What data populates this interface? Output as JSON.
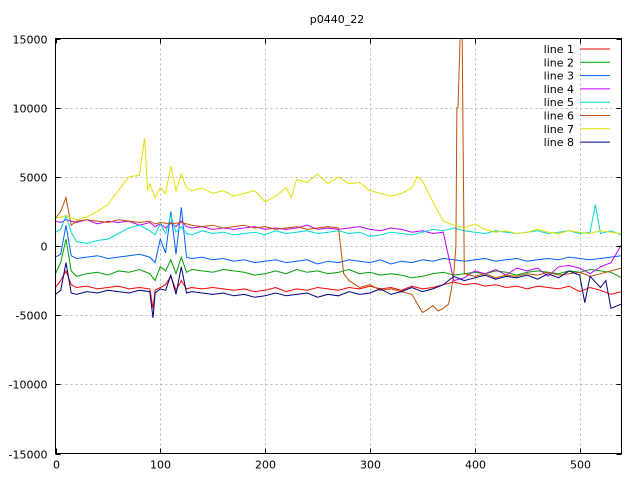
{
  "chart_data": {
    "type": "line",
    "title": "p0440_22",
    "xlabel": "",
    "ylabel": "",
    "xlim": [
      0,
      540
    ],
    "ylim": [
      -15000,
      15000
    ],
    "xticks": [
      0,
      100,
      200,
      300,
      400,
      500
    ],
    "yticks": [
      -15000,
      -10000,
      -5000,
      0,
      5000,
      10000,
      15000
    ],
    "grid": true,
    "legend_position": "top-right",
    "series": [
      {
        "name": "line 1",
        "color": "#ff0000",
        "x": [
          0,
          5,
          10,
          15,
          20,
          30,
          40,
          50,
          60,
          70,
          80,
          90,
          93,
          95,
          100,
          105,
          110,
          115,
          120,
          125,
          130,
          140,
          150,
          160,
          170,
          180,
          190,
          200,
          210,
          220,
          230,
          240,
          250,
          260,
          270,
          280,
          290,
          300,
          310,
          320,
          330,
          340,
          350,
          360,
          370,
          380,
          390,
          400,
          410,
          420,
          430,
          440,
          450,
          460,
          470,
          480,
          490,
          500,
          510,
          520,
          530,
          540
        ],
        "y": [
          -3000,
          -2500,
          -1800,
          -2800,
          -3000,
          -2900,
          -3100,
          -3000,
          -2900,
          -3100,
          -3000,
          -3100,
          -4500,
          -3200,
          -3000,
          -2800,
          -2200,
          -3200,
          -2500,
          -3100,
          -3000,
          -3100,
          -3000,
          -3100,
          -3200,
          -3100,
          -3300,
          -3200,
          -3000,
          -3300,
          -3100,
          -3200,
          -3000,
          -3100,
          -3200,
          -3000,
          -3100,
          -2900,
          -3100,
          -3000,
          -3200,
          -2900,
          -3100,
          -3000,
          -2800,
          -2600,
          -2800,
          -2700,
          -2900,
          -2800,
          -3000,
          -2900,
          -3100,
          -2900,
          -3000,
          -3100,
          -2900,
          -3300,
          -3000,
          -3200,
          -3500,
          -3300
        ]
      },
      {
        "name": "line 2",
        "color": "#00a000",
        "x": [
          0,
          5,
          10,
          15,
          20,
          30,
          40,
          50,
          60,
          70,
          80,
          90,
          95,
          100,
          105,
          110,
          115,
          120,
          125,
          130,
          140,
          150,
          160,
          170,
          180,
          190,
          200,
          210,
          220,
          230,
          240,
          250,
          260,
          270,
          280,
          290,
          300,
          310,
          320,
          330,
          340,
          350,
          360,
          370,
          380,
          390,
          400,
          410,
          420,
          430,
          440,
          450,
          460,
          470,
          480,
          490,
          500,
          510,
          520,
          530,
          540
        ],
        "y": [
          -2000,
          -1200,
          500,
          -1800,
          -2200,
          -2000,
          -1900,
          -2100,
          -1800,
          -1900,
          -1700,
          -2000,
          -2500,
          -1500,
          -1800,
          -1000,
          -2000,
          -800,
          -1900,
          -1700,
          -1800,
          -1900,
          -1700,
          -1800,
          -1900,
          -2100,
          -2000,
          -1800,
          -2000,
          -1700,
          -1900,
          -1800,
          -2000,
          -1900,
          -1700,
          -2000,
          -1900,
          -2100,
          -2000,
          -2100,
          -2300,
          -2200,
          -2000,
          -1900,
          -2100,
          -2000,
          -1900,
          -2000,
          -1800,
          -1900,
          -2100,
          -1900,
          -1800,
          -1900,
          -2000,
          -1800,
          -1900,
          -1700,
          -1800,
          -1900,
          -2300
        ]
      },
      {
        "name": "line 3",
        "color": "#0060ff",
        "x": [
          0,
          5,
          10,
          15,
          20,
          30,
          40,
          50,
          60,
          70,
          80,
          90,
          95,
          100,
          105,
          110,
          115,
          120,
          125,
          130,
          140,
          150,
          160,
          170,
          180,
          190,
          200,
          210,
          220,
          230,
          240,
          250,
          260,
          270,
          280,
          290,
          300,
          310,
          320,
          330,
          340,
          350,
          360,
          370,
          380,
          390,
          400,
          410,
          420,
          430,
          440,
          450,
          460,
          470,
          480,
          490,
          500,
          510,
          520,
          530,
          540
        ],
        "y": [
          -800,
          -600,
          1500,
          -700,
          -900,
          -800,
          -700,
          -900,
          -800,
          -700,
          -600,
          -800,
          -1200,
          500,
          -500,
          2500,
          -600,
          2800,
          -800,
          -900,
          -800,
          -1000,
          -900,
          -1100,
          -1000,
          -1200,
          -1100,
          -1000,
          -1200,
          -1100,
          -1000,
          -1300,
          -1100,
          -1200,
          -1000,
          -1100,
          -1200,
          -1000,
          -1300,
          -1100,
          -1200,
          -1000,
          -1100,
          -900,
          -1000,
          -1100,
          -1000,
          -900,
          -1100,
          -1000,
          -900,
          -1100,
          -1000,
          -900,
          -1000,
          -800,
          -900,
          -1000,
          -900,
          -800,
          -700
        ]
      },
      {
        "name": "line 4",
        "color": "#c000ff",
        "x": [
          0,
          5,
          10,
          15,
          20,
          30,
          40,
          50,
          60,
          70,
          80,
          90,
          95,
          100,
          105,
          110,
          115,
          120,
          125,
          130,
          140,
          150,
          160,
          170,
          180,
          190,
          200,
          210,
          220,
          230,
          240,
          250,
          260,
          270,
          280,
          290,
          300,
          310,
          320,
          330,
          340,
          350,
          360,
          370,
          380,
          390,
          400,
          410,
          420,
          430,
          440,
          450,
          460,
          470,
          480,
          490,
          500,
          510,
          520,
          530,
          540
        ],
        "y": [
          1800,
          1700,
          1900,
          1800,
          1700,
          1900,
          1600,
          1800,
          1700,
          1800,
          1500,
          1700,
          1400,
          1600,
          1300,
          1700,
          1400,
          1800,
          1400,
          1300,
          1400,
          1200,
          1300,
          1200,
          1300,
          1400,
          1200,
          1300,
          1200,
          1300,
          1500,
          1200,
          1300,
          1200,
          1300,
          1400,
          1200,
          1100,
          1300,
          1200,
          1000,
          1100,
          900,
          1000,
          -2500,
          -2300,
          -1800,
          -2000,
          -1700,
          -2100,
          -1600,
          -1800,
          -1600,
          -2200,
          -1500,
          -1400,
          -1600,
          -2000,
          -1500,
          -1200,
          100
        ]
      },
      {
        "name": "line 5",
        "color": "#00d8d8",
        "x": [
          0,
          5,
          10,
          15,
          20,
          30,
          40,
          50,
          60,
          70,
          80,
          90,
          95,
          100,
          105,
          110,
          115,
          120,
          125,
          130,
          140,
          150,
          160,
          170,
          180,
          190,
          200,
          210,
          220,
          230,
          240,
          250,
          260,
          270,
          280,
          290,
          300,
          310,
          320,
          330,
          340,
          350,
          360,
          370,
          380,
          390,
          400,
          410,
          420,
          430,
          440,
          450,
          460,
          470,
          480,
          490,
          500,
          510,
          515,
          520,
          530,
          540
        ],
        "y": [
          1000,
          1200,
          2200,
          1000,
          300,
          200,
          400,
          500,
          900,
          1300,
          1500,
          1100,
          800,
          1600,
          900,
          2200,
          1000,
          1400,
          900,
          800,
          1100,
          900,
          1000,
          800,
          900,
          1000,
          800,
          1100,
          900,
          1000,
          1100,
          900,
          1000,
          1100,
          900,
          1000,
          700,
          800,
          1000,
          900,
          800,
          1000,
          1200,
          1100,
          1300,
          1100,
          1000,
          900,
          1100,
          1000,
          900,
          1000,
          1100,
          900,
          1000,
          1100,
          900,
          1000,
          3000,
          900,
          1100,
          800
        ]
      },
      {
        "name": "line 6",
        "color": "#c05000",
        "x": [
          0,
          5,
          10,
          15,
          20,
          30,
          40,
          50,
          60,
          70,
          80,
          90,
          95,
          100,
          110,
          120,
          130,
          140,
          150,
          160,
          170,
          180,
          190,
          200,
          210,
          220,
          230,
          240,
          250,
          260,
          270,
          275,
          280,
          290,
          300,
          310,
          320,
          330,
          340,
          350,
          355,
          360,
          365,
          370,
          375,
          378,
          380,
          382,
          383,
          384,
          386,
          388,
          390,
          400,
          410,
          420,
          430,
          440,
          450,
          460,
          470,
          480,
          490,
          500,
          510,
          520,
          530,
          540
        ],
        "y": [
          2000,
          2500,
          3500,
          1500,
          1800,
          1900,
          1800,
          1700,
          1900,
          1800,
          1700,
          1800,
          1600,
          1700,
          1600,
          1700,
          1500,
          1400,
          1500,
          1300,
          1400,
          1500,
          1300,
          1400,
          1200,
          1300,
          1400,
          1200,
          1300,
          1400,
          1300,
          -2000,
          -2500,
          -3000,
          -2800,
          -3200,
          -3100,
          -3300,
          -3500,
          -4800,
          -4600,
          -4300,
          -4700,
          -4500,
          -4200,
          -3000,
          -2000,
          0,
          10000,
          10000,
          15000,
          15000,
          -2000,
          -2200,
          -2000,
          -2300,
          -2100,
          -2200,
          -2000,
          -2100,
          -1900,
          -2100,
          -2000,
          -1900,
          -2200,
          -2000,
          -1800,
          -1600
        ]
      },
      {
        "name": "line 7",
        "color": "#e0e000",
        "x": [
          0,
          10,
          20,
          30,
          40,
          50,
          60,
          70,
          80,
          85,
          88,
          90,
          95,
          100,
          105,
          110,
          115,
          120,
          125,
          130,
          140,
          150,
          160,
          170,
          180,
          190,
          200,
          210,
          220,
          225,
          230,
          240,
          250,
          260,
          270,
          280,
          290,
          300,
          310,
          320,
          330,
          340,
          345,
          350,
          360,
          370,
          380,
          390,
          400,
          410,
          420,
          430,
          440,
          450,
          460,
          470,
          480,
          490,
          500,
          510,
          520,
          530,
          540
        ],
        "y": [
          2000,
          2200,
          1900,
          2100,
          2500,
          3000,
          4000,
          5000,
          5100,
          7800,
          4000,
          4500,
          3500,
          4200,
          3800,
          5800,
          4000,
          5200,
          4200,
          4000,
          4200,
          3800,
          4000,
          3600,
          3800,
          4000,
          3200,
          3600,
          4200,
          3500,
          4800,
          4600,
          5200,
          4500,
          5000,
          4500,
          4600,
          4000,
          3800,
          3600,
          3800,
          4200,
          5000,
          4700,
          3200,
          1800,
          1500,
          1300,
          1600,
          1200,
          1000,
          1100,
          900,
          1000,
          1200,
          1000,
          900,
          1100,
          1000,
          900,
          1100,
          1000,
          900
        ]
      },
      {
        "name": "line 8",
        "color": "#000080",
        "x": [
          0,
          5,
          10,
          15,
          20,
          30,
          40,
          50,
          60,
          70,
          80,
          90,
          93,
          95,
          100,
          105,
          110,
          115,
          120,
          125,
          130,
          140,
          150,
          160,
          170,
          180,
          190,
          200,
          210,
          220,
          230,
          240,
          250,
          260,
          270,
          280,
          290,
          300,
          310,
          320,
          330,
          340,
          350,
          360,
          370,
          380,
          390,
          400,
          410,
          420,
          430,
          440,
          450,
          460,
          470,
          480,
          490,
          500,
          505,
          510,
          520,
          525,
          530,
          540
        ],
        "y": [
          -3500,
          -3200,
          -1200,
          -3400,
          -3500,
          -3300,
          -3400,
          -3200,
          -3300,
          -3400,
          -3200,
          -3300,
          -5200,
          -3400,
          -3100,
          -3200,
          -2100,
          -3500,
          -1500,
          -3400,
          -3300,
          -3400,
          -3500,
          -3400,
          -3600,
          -3500,
          -3700,
          -3600,
          -3400,
          -3600,
          -3500,
          -3400,
          -3700,
          -3500,
          -3600,
          -3300,
          -3500,
          -3400,
          -3100,
          -3500,
          -3300,
          -3000,
          -3300,
          -3100,
          -2800,
          -2200,
          -2500,
          -2300,
          -2100,
          -2400,
          -2200,
          -2300,
          -2100,
          -2400,
          -2000,
          -2300,
          -1800,
          -2100,
          -4100,
          -2200,
          -3000,
          -2500,
          -4500,
          -4200
        ]
      }
    ]
  }
}
